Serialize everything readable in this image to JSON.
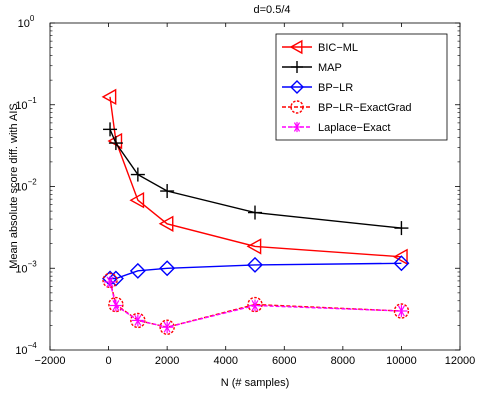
{
  "chart_data": {
    "type": "line",
    "title": "d=0.5/4",
    "xlabel": "N (# samples)",
    "ylabel": "Mean absolute score diff. with AIS",
    "xlim": [
      -2000,
      12000
    ],
    "ylim": [
      0.0001,
      1
    ],
    "yscale": "log",
    "grid": false,
    "legend_position": "top-right",
    "x_ticks": [
      -2000,
      0,
      2000,
      4000,
      6000,
      8000,
      10000,
      12000
    ],
    "x_tick_labels": [
      "−2000",
      "0",
      "2000",
      "4000",
      "6000",
      "8000",
      "10000",
      "12000"
    ],
    "y_ticks": [
      0.0001,
      0.001,
      0.01,
      0.1,
      1
    ],
    "y_tick_labels": [
      {
        "base": "10",
        "exp": "−4"
      },
      {
        "base": "10",
        "exp": "−3"
      },
      {
        "base": "10",
        "exp": "−2"
      },
      {
        "base": "10",
        "exp": "−1"
      },
      {
        "base": "10",
        "exp": "0"
      }
    ],
    "series": [
      {
        "name": "BIC−ML",
        "color": "#ff0000",
        "marker": "triangle-left",
        "x": [
          50,
          250,
          1000,
          2000,
          5000,
          10000
        ],
        "y": [
          0.125,
          0.036,
          0.0068,
          0.0035,
          0.00185,
          0.00138
        ]
      },
      {
        "name": "MAP",
        "color": "#000000",
        "marker": "plus",
        "x": [
          50,
          250,
          1000,
          2000,
          5000,
          10000
        ],
        "y": [
          0.05,
          0.034,
          0.014,
          0.0088,
          0.0048,
          0.0031
        ]
      },
      {
        "name": "BP−LR",
        "color": "#0000ff",
        "marker": "diamond",
        "x": [
          50,
          250,
          1000,
          2000,
          5000,
          10000
        ],
        "y": [
          0.00075,
          0.00075,
          0.00093,
          0.001,
          0.0011,
          0.00115
        ]
      },
      {
        "name": "BP−LR−ExactGrad",
        "color": "#ff0000",
        "marker": "circle",
        "x": [
          50,
          250,
          1000,
          2000,
          5000,
          10000
        ],
        "y": [
          0.00071,
          0.00036,
          0.00023,
          0.00019,
          0.00036,
          0.0003
        ]
      },
      {
        "name": "Laplace−Exact",
        "color": "#ff00ff",
        "marker": "asterisk",
        "x": [
          50,
          250,
          1000,
          2000,
          5000,
          10000
        ],
        "y": [
          0.00068,
          0.00035,
          0.00023,
          0.00019,
          0.00035,
          0.0003
        ]
      }
    ]
  }
}
